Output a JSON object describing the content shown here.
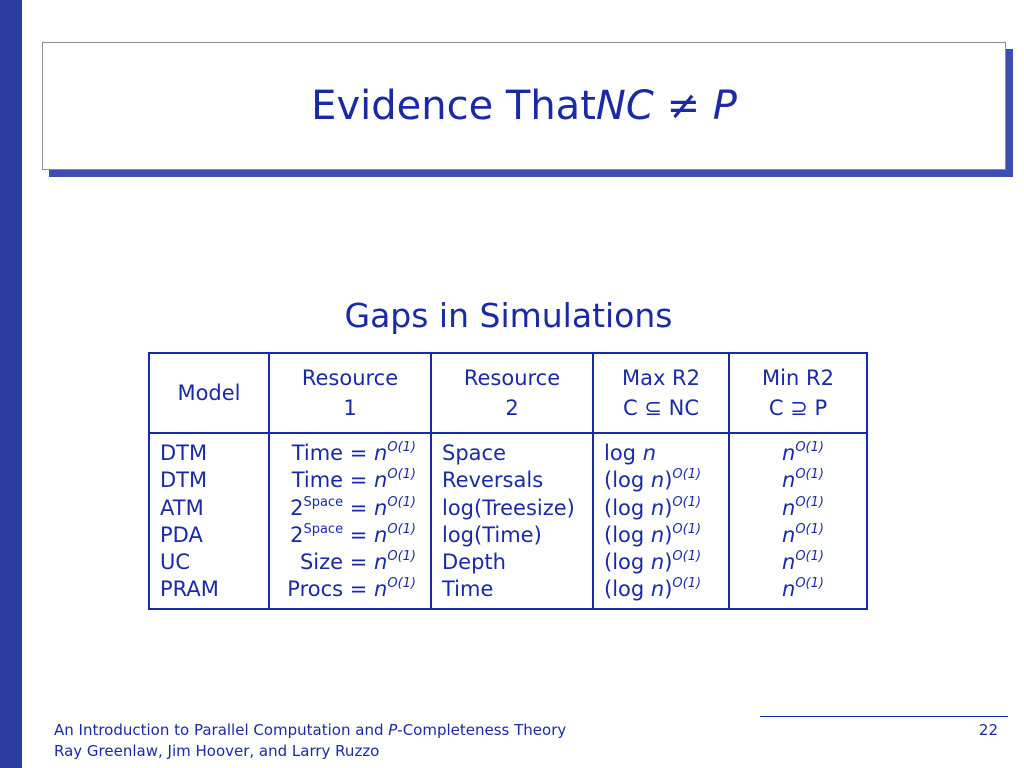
{
  "title": {
    "prefix": "Evidence That ",
    "nc": "NC",
    "neq": "≠",
    "p": "P"
  },
  "subtitle": "Gaps in Simulations",
  "table": {
    "headers": {
      "model": "Model",
      "resource1_line1": "Resource",
      "resource1_line2": "1",
      "resource2_line1": "Resource",
      "resource2_line2": "2",
      "maxr2_line1": "Max R2",
      "maxr2_line2": "C ⊆ NC",
      "minr2_line1": "Min R2",
      "minr2_line2": "C ⊇ P"
    },
    "rows": [
      {
        "model": "DTM",
        "r1_base": "Time = ",
        "r1_var": "n",
        "r1_exp": "O(1)",
        "r2": "Space",
        "max_pre": "log ",
        "max_var": "n",
        "max_post": "",
        "max_exp": "",
        "min_var": "n",
        "min_exp": "O(1)"
      },
      {
        "model": "DTM",
        "r1_base": "Time = ",
        "r1_var": "n",
        "r1_exp": "O(1)",
        "r2": "Reversals",
        "max_pre": "(log ",
        "max_var": "n",
        "max_post": ")",
        "max_exp": "O(1)",
        "min_var": "n",
        "min_exp": "O(1)"
      },
      {
        "model": "ATM",
        "r1_base": "2",
        "r1_sup": "Space",
        "r1_eq": " = ",
        "r1_var": "n",
        "r1_exp": "O(1)",
        "r2": "log(Treesize)",
        "max_pre": "(log ",
        "max_var": "n",
        "max_post": ")",
        "max_exp": "O(1)",
        "min_var": "n",
        "min_exp": "O(1)"
      },
      {
        "model": "PDA",
        "r1_base": "2",
        "r1_sup": "Space",
        "r1_eq": " = ",
        "r1_var": "n",
        "r1_exp": "O(1)",
        "r2": "log(Time)",
        "max_pre": "(log ",
        "max_var": "n",
        "max_post": ")",
        "max_exp": "O(1)",
        "min_var": "n",
        "min_exp": "O(1)"
      },
      {
        "model": "UC",
        "r1_base": "Size = ",
        "r1_var": "n",
        "r1_exp": "O(1)",
        "r2": "Depth",
        "max_pre": "(log ",
        "max_var": "n",
        "max_post": ")",
        "max_exp": "O(1)",
        "min_var": "n",
        "min_exp": "O(1)"
      },
      {
        "model": "PRAM",
        "r1_base": "Procs = ",
        "r1_var": "n",
        "r1_exp": "O(1)",
        "r2": "Time",
        "max_pre": "(log ",
        "max_var": "n",
        "max_post": ")",
        "max_exp": "O(1)",
        "min_var": "n",
        "min_exp": "O(1)"
      }
    ]
  },
  "footer": {
    "line1_pre": "An Introduction to Parallel Computation and ",
    "line1_p": "P",
    "line1_post": "-Completeness Theory",
    "line2": "Ray Greenlaw, Jim Hoover, and Larry Ruzzo",
    "page": "22"
  },
  "colors": {
    "accent": "#1a2aa6",
    "sidebar": "#2b3d9e",
    "shadow": "#3a4fb0"
  }
}
